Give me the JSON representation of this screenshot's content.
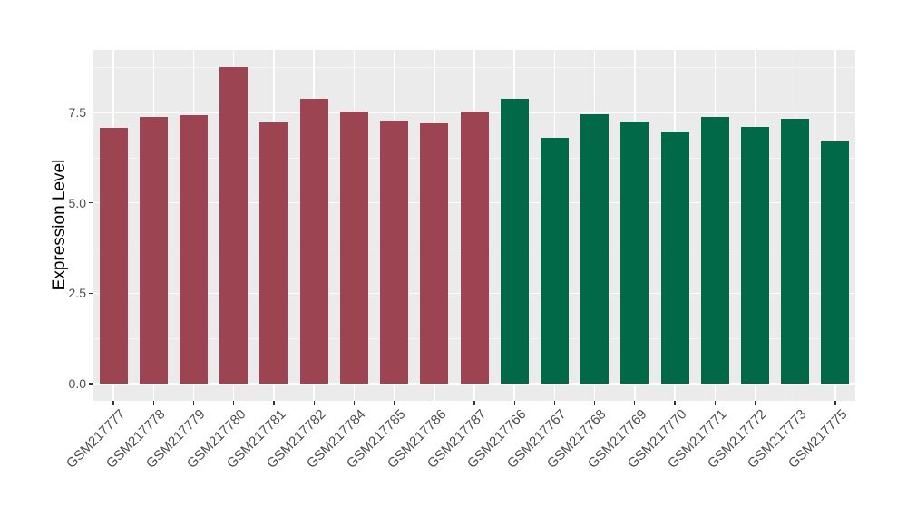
{
  "chart": {
    "background": "#FFFFFF",
    "panel_background": "#EBEBEB",
    "grid_color": "#FFFFFF",
    "axis_tick_color": "#333333",
    "tick_label_color": "#4D4D4D",
    "group1_color": "#9C4452",
    "group2_color": "#016948"
  },
  "chart_data": {
    "type": "bar",
    "title": "",
    "xlabel": "",
    "ylabel": "Expression Level",
    "grid": true,
    "legend": false,
    "bar_orientation": "vertical",
    "categories": [
      "GSM217777",
      "GSM217778",
      "GSM217779",
      "GSM217780",
      "GSM217781",
      "GSM217782",
      "GSM217784",
      "GSM217785",
      "GSM217786",
      "GSM217787",
      "GSM217766",
      "GSM217767",
      "GSM217768",
      "GSM217769",
      "GSM217770",
      "GSM217771",
      "GSM217772",
      "GSM217773",
      "GSM217775"
    ],
    "values": [
      7.08,
      7.37,
      7.43,
      8.75,
      7.23,
      7.87,
      7.53,
      7.26,
      7.2,
      7.53,
      7.87,
      6.79,
      7.44,
      7.24,
      6.96,
      7.36,
      7.1,
      7.31,
      6.69
    ],
    "bar_colors": [
      "#9C4452",
      "#9C4452",
      "#9C4452",
      "#9C4452",
      "#9C4452",
      "#9C4452",
      "#9C4452",
      "#9C4452",
      "#9C4452",
      "#9C4452",
      "#016948",
      "#016948",
      "#016948",
      "#016948",
      "#016948",
      "#016948",
      "#016948",
      "#016948",
      "#016948"
    ],
    "yticks": [
      0,
      2.5,
      5,
      7.5
    ],
    "ytick_labels": [
      "0.0",
      "2.5",
      "5.0",
      "7.5"
    ],
    "yticks_minor": [
      1.25,
      3.75,
      6.25,
      8.75
    ],
    "ylim": [
      0,
      9.24
    ]
  }
}
